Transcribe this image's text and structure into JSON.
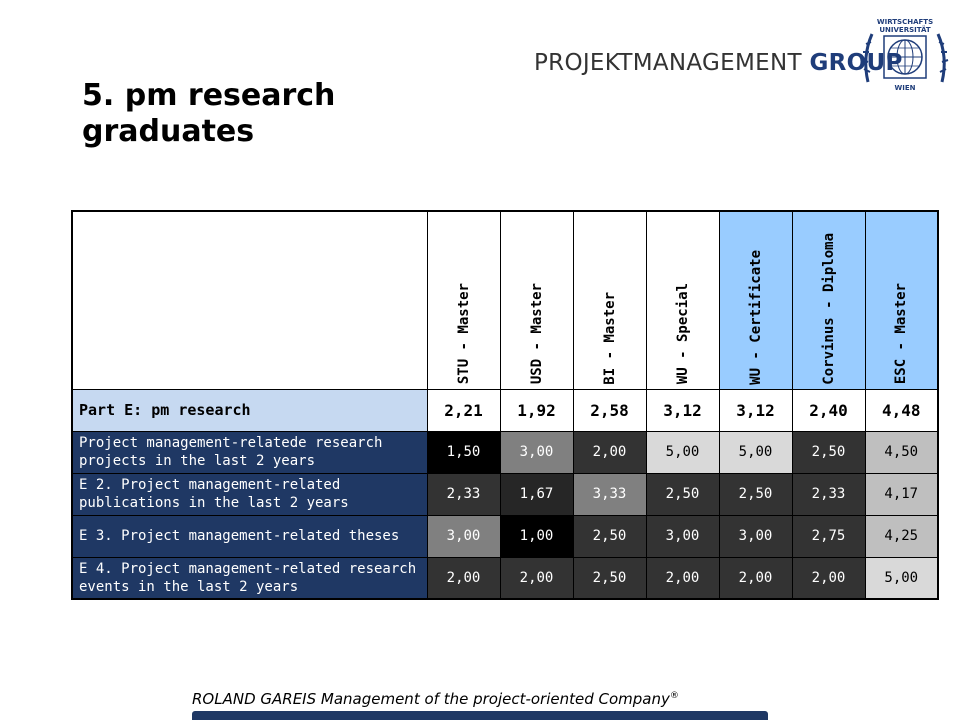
{
  "header": {
    "brand_left": "PROJEKTMANAGEMENT",
    "brand_right": "GROUP",
    "seal_top": "WIRTSCHAFTS",
    "seal_mid": "UNIVERSITÄT",
    "seal_bottom": "WIEN"
  },
  "title": "5. pm research graduates",
  "table": {
    "columns": [
      {
        "label": "STU - Master",
        "highlight": false
      },
      {
        "label": "USD - Master",
        "highlight": false
      },
      {
        "label": "BI - Master",
        "highlight": false
      },
      {
        "label": "WU - Special",
        "highlight": false
      },
      {
        "label": "WU - Certificate",
        "highlight": true
      },
      {
        "label": "Corvinus - Diploma",
        "highlight": true
      },
      {
        "label": "ESC - Master",
        "highlight": true
      }
    ],
    "part_row": {
      "label": "Part E: pm research",
      "values": [
        "2,21",
        "1,92",
        "2,58",
        "3,12",
        "3,12",
        "2,40",
        "4,48"
      ]
    },
    "rows": [
      {
        "label": "Project management-relatede research projects in the last 2 years",
        "cells": [
          {
            "v": "1,50",
            "bg": "#000000",
            "fg": "#ffffff"
          },
          {
            "v": "3,00",
            "bg": "#808080",
            "fg": "#ffffff"
          },
          {
            "v": "2,00",
            "bg": "#333333",
            "fg": "#ffffff"
          },
          {
            "v": "5,00",
            "bg": "#d9d9d9",
            "fg": "#000000"
          },
          {
            "v": "5,00",
            "bg": "#d9d9d9",
            "fg": "#000000"
          },
          {
            "v": "2,50",
            "bg": "#333333",
            "fg": "#ffffff"
          },
          {
            "v": "4,50",
            "bg": "#bfbfbf",
            "fg": "#000000"
          }
        ]
      },
      {
        "label": "E 2. Project management-related publications in the last 2 years",
        "cells": [
          {
            "v": "2,33",
            "bg": "#333333",
            "fg": "#ffffff"
          },
          {
            "v": "1,67",
            "bg": "#262626",
            "fg": "#ffffff"
          },
          {
            "v": "3,33",
            "bg": "#808080",
            "fg": "#ffffff"
          },
          {
            "v": "2,50",
            "bg": "#333333",
            "fg": "#ffffff"
          },
          {
            "v": "2,50",
            "bg": "#333333",
            "fg": "#ffffff"
          },
          {
            "v": "2,33",
            "bg": "#333333",
            "fg": "#ffffff"
          },
          {
            "v": "4,17",
            "bg": "#bfbfbf",
            "fg": "#000000"
          }
        ]
      },
      {
        "label": "E 3. Project management-related theses",
        "cells": [
          {
            "v": "3,00",
            "bg": "#808080",
            "fg": "#ffffff"
          },
          {
            "v": "1,00",
            "bg": "#000000",
            "fg": "#ffffff"
          },
          {
            "v": "2,50",
            "bg": "#333333",
            "fg": "#ffffff"
          },
          {
            "v": "3,00",
            "bg": "#333333",
            "fg": "#ffffff"
          },
          {
            "v": "3,00",
            "bg": "#333333",
            "fg": "#ffffff"
          },
          {
            "v": "2,75",
            "bg": "#333333",
            "fg": "#ffffff"
          },
          {
            "v": "4,25",
            "bg": "#bfbfbf",
            "fg": "#000000"
          }
        ]
      },
      {
        "label": "E 4. Project management-related research events in the last 2 years",
        "cells": [
          {
            "v": "2,00",
            "bg": "#333333",
            "fg": "#ffffff"
          },
          {
            "v": "2,00",
            "bg": "#333333",
            "fg": "#ffffff"
          },
          {
            "v": "2,50",
            "bg": "#333333",
            "fg": "#ffffff"
          },
          {
            "v": "2,00",
            "bg": "#333333",
            "fg": "#ffffff"
          },
          {
            "v": "2,00",
            "bg": "#333333",
            "fg": "#ffffff"
          },
          {
            "v": "2,00",
            "bg": "#333333",
            "fg": "#ffffff"
          },
          {
            "v": "5,00",
            "bg": "#d9d9d9",
            "fg": "#000000"
          }
        ]
      }
    ]
  },
  "footer": {
    "text": "ROLAND GAREIS Management of the project-oriented Company",
    "mark": "®"
  }
}
